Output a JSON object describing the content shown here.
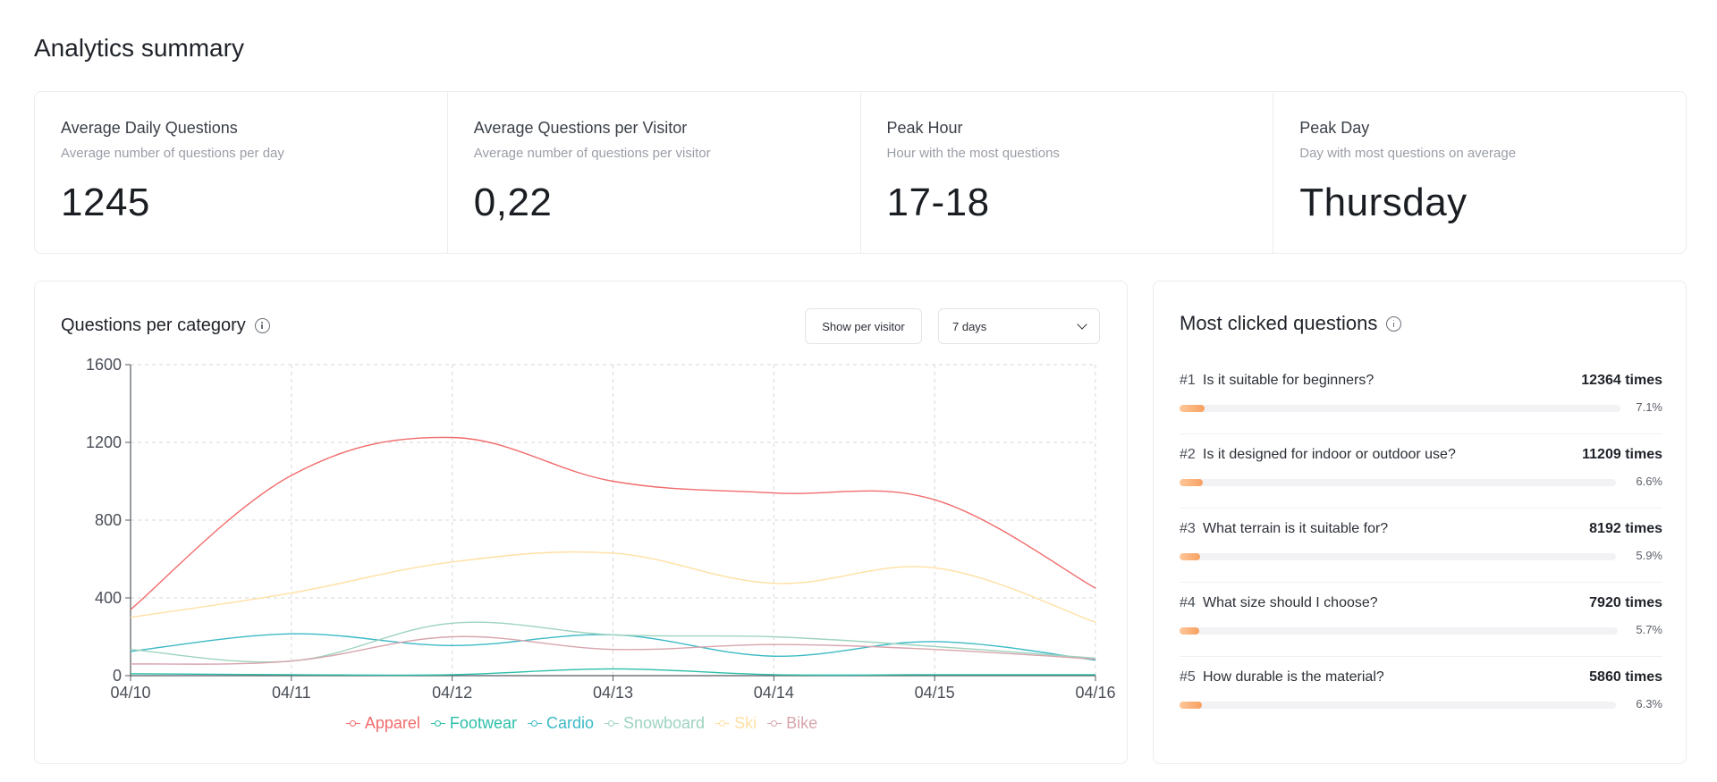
{
  "page": {
    "title": "Analytics summary"
  },
  "stats": [
    {
      "title": "Average Daily Questions",
      "subtitle": "Average number of questions per day",
      "value": "1245"
    },
    {
      "title": "Average Questions per Visitor",
      "subtitle": "Average number of questions per visitor",
      "value": "0,22"
    },
    {
      "title": "Peak Hour",
      "subtitle": "Hour with the most questions",
      "value": "17-18"
    },
    {
      "title": "Peak Day",
      "subtitle": "Day with most questions on average",
      "value": "Thursday"
    }
  ],
  "chart_card": {
    "title": "Questions per category",
    "info_icon": "info-icon",
    "show_per_visitor_label": "Show per visitor",
    "range_select": {
      "value": "7 days",
      "icon": "chevron-down-icon"
    }
  },
  "chart_data": {
    "type": "line",
    "x": [
      "04/10",
      "04/11",
      "04/12",
      "04/13",
      "04/14",
      "04/15",
      "04/16"
    ],
    "ylim": [
      0,
      1600
    ],
    "yticks": [
      0,
      400,
      800,
      1200,
      1600
    ],
    "grid": true,
    "legend_position": "bottom",
    "smooth": true,
    "series": [
      {
        "name": "Apparel",
        "color": "#f16b6b",
        "values": [
          340,
          1030,
          1225,
          1000,
          940,
          905,
          450
        ]
      },
      {
        "name": "Footwear",
        "color": "#2bbfa8",
        "values": [
          10,
          5,
          5,
          35,
          5,
          5,
          5
        ]
      },
      {
        "name": "Cardio",
        "color": "#3bb9c6",
        "values": [
          125,
          215,
          155,
          210,
          100,
          175,
          80
        ]
      },
      {
        "name": "Snowboard",
        "color": "#9ed3bf",
        "values": [
          135,
          75,
          270,
          210,
          200,
          150,
          90
        ]
      },
      {
        "name": "Ski",
        "color": "#ffe0a3",
        "values": [
          300,
          425,
          585,
          630,
          475,
          555,
          275
        ]
      },
      {
        "name": "Bike",
        "color": "#d7a5ad",
        "values": [
          60,
          75,
          200,
          135,
          160,
          135,
          85
        ]
      }
    ]
  },
  "questions_card": {
    "title": "Most clicked questions",
    "info_icon": "info-icon",
    "items": [
      {
        "rank": "#1",
        "text": "Is it suitable for beginners?",
        "count": "12364 times",
        "percent": "7.1%",
        "fraction": 0.071
      },
      {
        "rank": "#2",
        "text": "Is it designed for indoor or outdoor use?",
        "count": "11209 times",
        "percent": "6.6%",
        "fraction": 0.066
      },
      {
        "rank": "#3",
        "text": "What terrain is it suitable for?",
        "count": "8192 times",
        "percent": "5.9%",
        "fraction": 0.059
      },
      {
        "rank": "#4",
        "text": "What size should I choose?",
        "count": "7920 times",
        "percent": "5.7%",
        "fraction": 0.057
      },
      {
        "rank": "#5",
        "text": "How durable is the material?",
        "count": "5860 times",
        "percent": "6.3%",
        "fraction": 0.063
      }
    ]
  }
}
